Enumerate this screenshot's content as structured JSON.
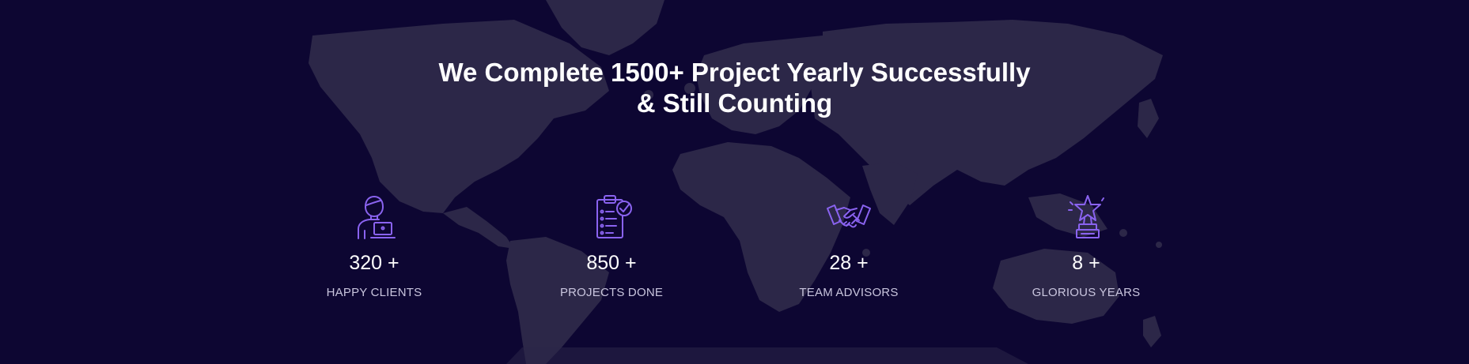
{
  "section": {
    "headline_line1": "We Complete 1500+ Project Yearly Successfully",
    "headline_line2": "& Still Counting"
  },
  "stats": [
    {
      "value": "320 +",
      "label": "HAPPY CLIENTS",
      "icon": "client-laptop-icon"
    },
    {
      "value": "850 +",
      "label": "PROJECTS DONE",
      "icon": "clipboard-check-icon"
    },
    {
      "value": "28 +",
      "label": "TEAM ADVISORS",
      "icon": "handshake-icon"
    },
    {
      "value": "8 +",
      "label": "GLORIOUS YEARS",
      "icon": "trophy-star-icon"
    }
  ],
  "colors": {
    "background": "#0d0632",
    "map": "#2c2748",
    "icon_accent": "#8a63f0",
    "text": "#ffffff",
    "label": "#c9c5de"
  }
}
